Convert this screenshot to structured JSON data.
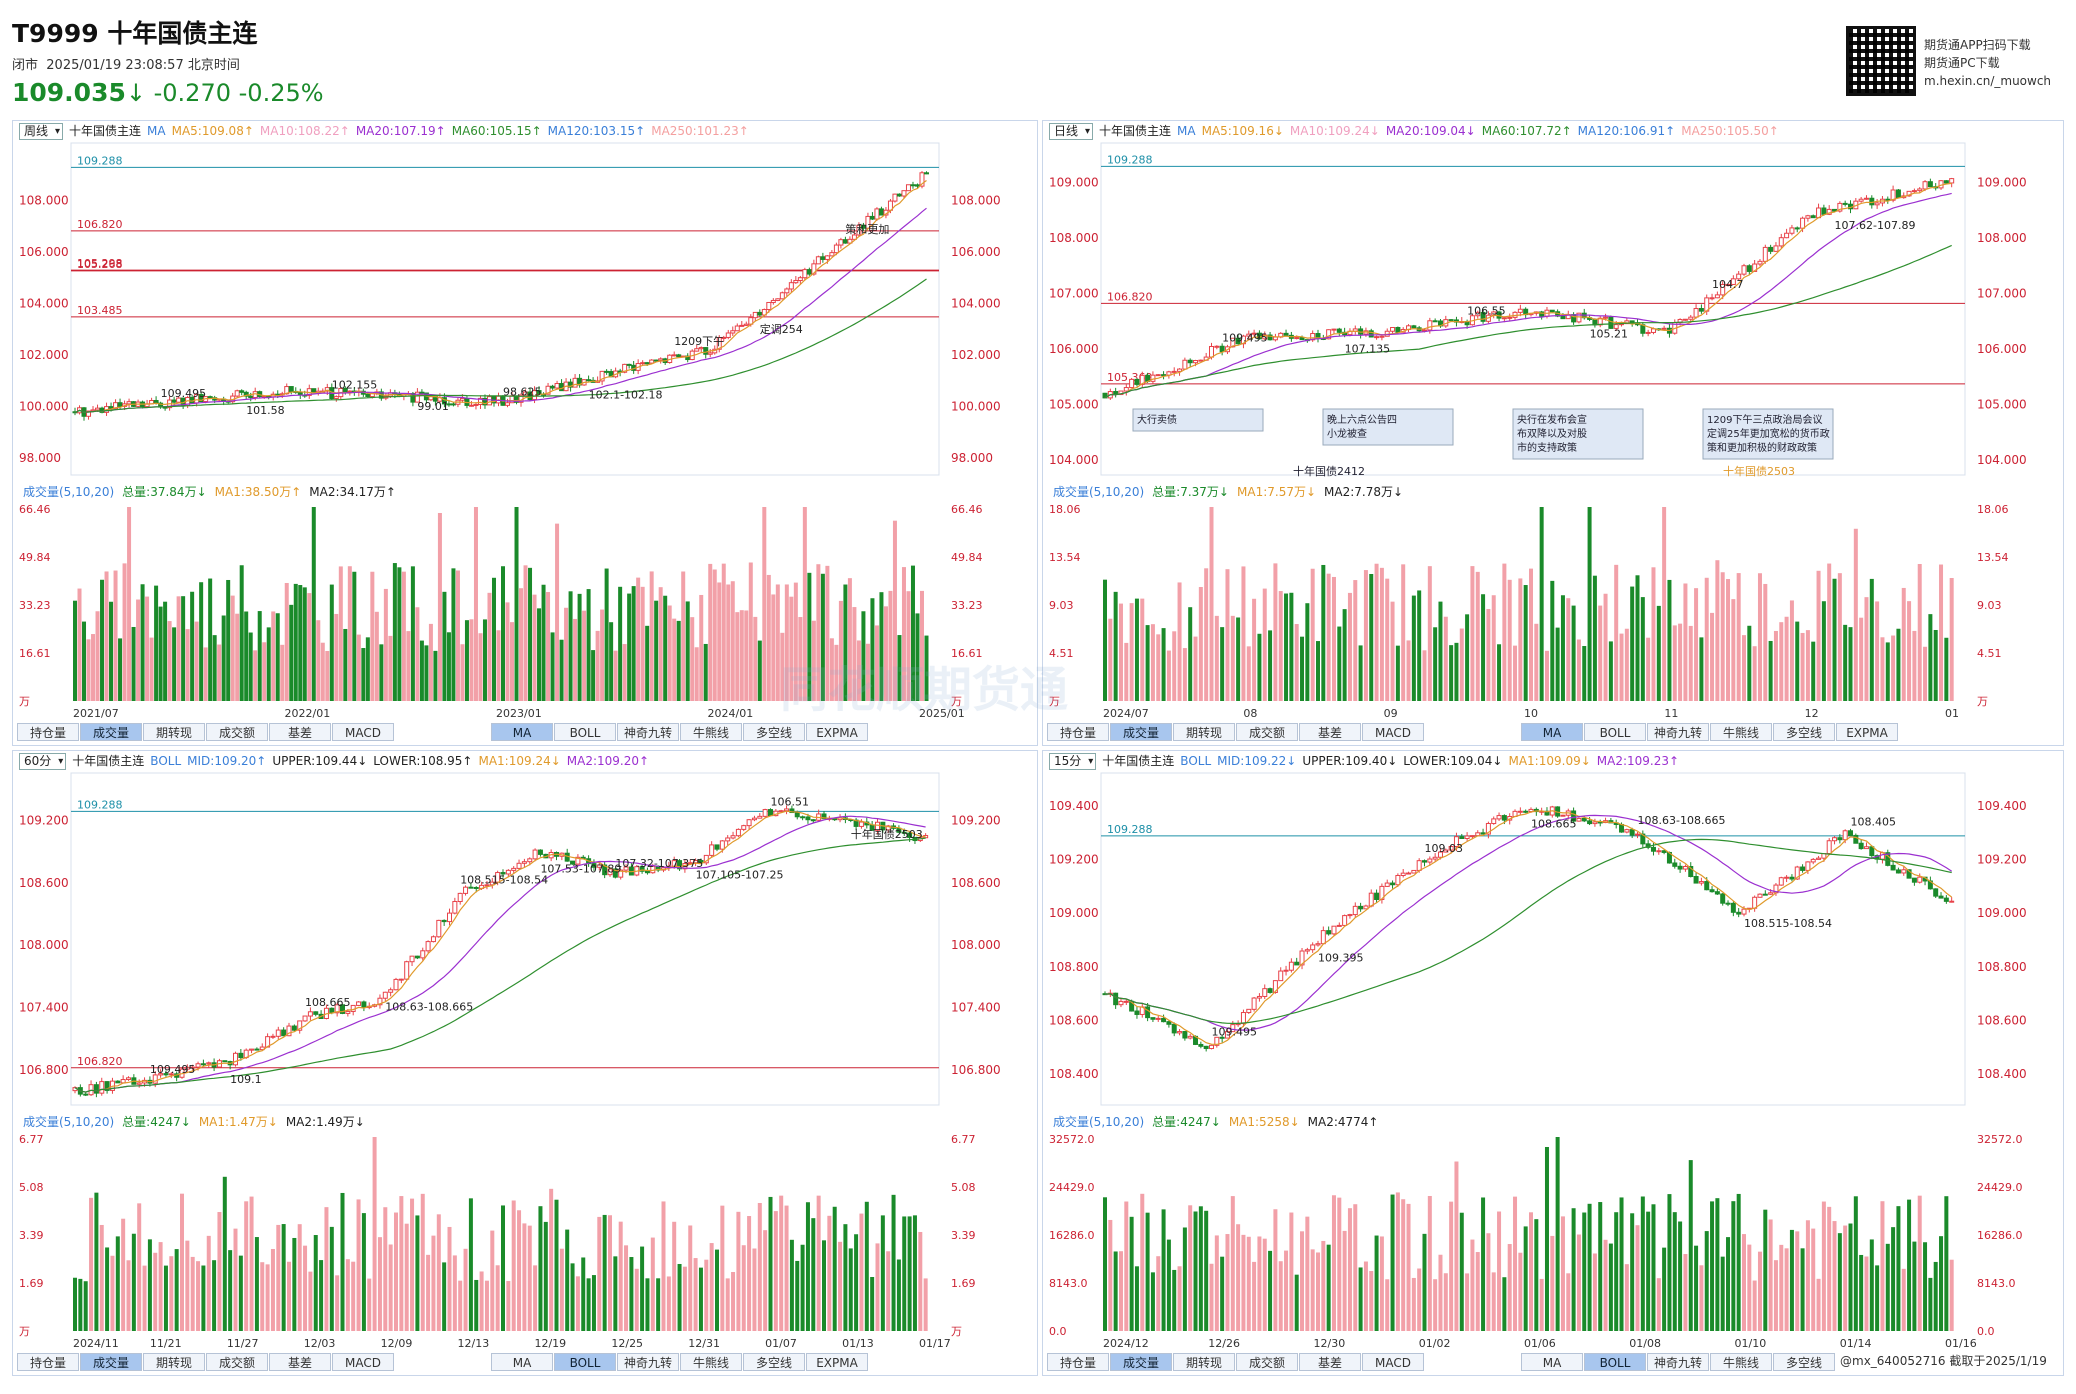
{
  "header": {
    "title": "T9999 十年国债主连",
    "status": "闭市",
    "datetime": "2025/01/19 23:08:57 北京时间",
    "price": "109.035",
    "arrow": "↓",
    "change": "-0.270",
    "change_pct": "-0.25%",
    "qr_lines": [
      "期货通APP扫码下载",
      "期货通PC下载",
      "m.hexin.cn/_muowch"
    ]
  },
  "colors": {
    "up": "#e8434a",
    "down": "#1a8a2a",
    "ma5": "#e09a2b",
    "ma10": "#f0a0c0",
    "ma20": "#9b30d0",
    "ma60": "#2f8f2f",
    "ma120": "#3a7fd8",
    "ma250": "#f4a0a0",
    "support": "#1e90a8",
    "resist": "#c23"
  },
  "panels": {
    "weekly": {
      "period": "周线",
      "name": "十年国债主连",
      "ma_labels": [
        "MA",
        "MA5:109.08↑",
        "MA10:108.22↑",
        "MA20:107.19↑",
        "MA60:105.15↑",
        "MA120:103.15↑",
        "MA250:101.23↑"
      ],
      "yticks": [
        "108.000",
        "106.000",
        "104.000",
        "102.000",
        "100.000",
        "98.000"
      ],
      "level_labels": [
        "109.288",
        "106.820",
        "105.268",
        "105.298",
        "103.485"
      ],
      "annotations": [
        "109.495",
        "101.58",
        "102.155",
        "99.01",
        "98.625",
        "102.1-102.18",
        "1209下午",
        "定调254",
        "策和更加"
      ],
      "vol_header": [
        "成交量(5,10,20)",
        "总量:37.84万↓",
        "MA1:38.50万↑",
        "MA2:34.17万↑"
      ],
      "vol_ticks": [
        "66.46",
        "49.84",
        "33.23",
        "16.61",
        "万"
      ],
      "xticks": [
        "2021/07",
        "2022/01",
        "2023/01",
        "2024/01",
        "2025/01"
      ],
      "tabs_left": [
        "持仓量",
        "成交量",
        "期转现",
        "成交额",
        "基差",
        "MACD"
      ],
      "tabs_right": [
        "MA",
        "BOLL",
        "神奇九转",
        "牛熊线",
        "多空线",
        "EXPMA"
      ],
      "active_left": "成交量",
      "active_right": "MA"
    },
    "daily": {
      "period": "日线",
      "name": "十年国债主连",
      "ma_labels": [
        "MA",
        "MA5:109.16↓",
        "MA10:109.24↓",
        "MA20:109.04↓",
        "MA60:107.72↑",
        "MA120:106.91↑",
        "MA250:105.50↑"
      ],
      "yticks": [
        "109.000",
        "108.000",
        "107.000",
        "106.000",
        "105.000",
        "104.000"
      ],
      "level_labels": [
        "109.288",
        "106.820",
        "105.369"
      ],
      "annotations": [
        "109.495",
        "107.135",
        "106.55",
        "105.21",
        "104.7",
        "107.62-107.89"
      ],
      "callouts": [
        "大行卖债",
        "晚上六点公告四\n小龙被查",
        "央行在发布会宣\n布双降以及对股\n市的支持政策",
        "1209下午三点政治局会议\n定调25年更加宽松的货币政\n策和更加积极的财政政策"
      ],
      "contracts": [
        "十年国债2412",
        "十年国债2503"
      ],
      "vol_header": [
        "成交量(5,10,20)",
        "总量:7.37万↓",
        "MA1:7.57万↓",
        "MA2:7.78万↓"
      ],
      "vol_ticks": [
        "18.06",
        "13.54",
        "9.03",
        "4.51",
        "万"
      ],
      "xticks": [
        "2024/07",
        "08",
        "09",
        "10",
        "11",
        "12",
        "01"
      ],
      "tabs_left": [
        "持仓量",
        "成交量",
        "期转现",
        "成交额",
        "基差",
        "MACD"
      ],
      "tabs_right": [
        "MA",
        "BOLL",
        "神奇九转",
        "牛熊线",
        "多空线",
        "EXPMA"
      ],
      "active_left": "成交量",
      "active_right": "MA"
    },
    "min60": {
      "period": "60分",
      "name": "十年国债主连",
      "ma_labels": [
        "BOLL",
        "MID:109.20↑",
        "UPPER:109.44↓",
        "LOWER:108.95↑",
        "MA1:109.24↓",
        "MA2:109.20↑"
      ],
      "yticks": [
        "109.200",
        "108.600",
        "108.000",
        "107.400",
        "106.800"
      ],
      "level_labels": [
        "109.288",
        "106.820"
      ],
      "annotations": [
        "109.495",
        "109.1",
        "108.665",
        "108.63-108.665",
        "108.515-108.54",
        "107.53-107.89",
        "107.32-107.375",
        "107.105-107.25",
        "106.51",
        "十年国债2503"
      ],
      "vol_header": [
        "成交量(5,10,20)",
        "总量:4247↓",
        "MA1:1.47万↓",
        "MA2:1.49万↓"
      ],
      "vol_ticks": [
        "6.77",
        "5.08",
        "3.39",
        "1.69",
        "万"
      ],
      "xticks": [
        "2024/11",
        "11/21",
        "11/27",
        "12/03",
        "12/09",
        "12/13",
        "12/19",
        "12/25",
        "12/31",
        "01/07",
        "01/13",
        "01/17"
      ],
      "tabs_left": [
        "持仓量",
        "成交量",
        "期转现",
        "成交额",
        "基差",
        "MACD"
      ],
      "tabs_right": [
        "MA",
        "BOLL",
        "神奇九转",
        "牛熊线",
        "多空线",
        "EXPMA"
      ],
      "active_left": "成交量",
      "active_right": "BOLL"
    },
    "min15": {
      "period": "15分",
      "name": "十年国债主连",
      "ma_labels": [
        "BOLL",
        "MID:109.22↓",
        "UPPER:109.40↓",
        "LOWER:109.04↓",
        "MA1:109.09↓",
        "MA2:109.23↑"
      ],
      "yticks": [
        "109.400",
        "109.200",
        "109.000",
        "108.800",
        "108.600",
        "108.400"
      ],
      "level_labels": [
        "109.288"
      ],
      "annotations": [
        "109.495",
        "109.395",
        "109.03",
        "108.665",
        "108.63-108.665",
        "108.515-108.54",
        "108.405"
      ],
      "vol_header": [
        "成交量(5,10,20)",
        "总量:4247↓",
        "MA1:5258↓",
        "MA2:4774↑"
      ],
      "vol_ticks": [
        "32572.0",
        "24429.0",
        "16286.0",
        "8143.0",
        "0.0"
      ],
      "xticks": [
        "2024/12",
        "12/26",
        "12/30",
        "01/02",
        "01/06",
        "01/08",
        "01/10",
        "01/14",
        "01/16"
      ],
      "tabs_left": [
        "持仓量",
        "成交量",
        "期转现",
        "成交额",
        "基差",
        "MACD"
      ],
      "tabs_right": [
        "MA",
        "BOLL",
        "神奇九转",
        "牛熊线",
        "多空线"
      ],
      "active_left": "成交量",
      "active_right": "BOLL"
    }
  },
  "watermark": "同花顺期货通",
  "footer": "@mx_640052716  截取于2025/1/19",
  "chart_data": [
    {
      "type": "candlestick",
      "title": "周线 十年国债主连",
      "x": [
        "2021/07",
        "2022/01",
        "2023/01",
        "2024/01",
        "2025/01"
      ],
      "close": [
        99.8,
        100.6,
        100.2,
        102.3,
        109.035
      ],
      "ylim": [
        97.5,
        110
      ],
      "levels": [
        109.288,
        106.82,
        105.268,
        105.298,
        103.485
      ]
    },
    {
      "type": "candlestick",
      "title": "日线 十年国债主连",
      "x": [
        "2024/07",
        "08",
        "09",
        "10",
        "11",
        "12",
        "01"
      ],
      "close": [
        105.2,
        106.2,
        106.3,
        106.7,
        106.3,
        108.4,
        109.035
      ],
      "ylim": [
        103.8,
        109.6
      ],
      "levels": [
        109.288,
        106.82,
        105.369
      ]
    },
    {
      "type": "candlestick",
      "title": "60分 十年国债主连",
      "x": [
        "2024/11",
        "11/21",
        "11/27",
        "12/03",
        "12/09",
        "12/13",
        "12/19",
        "12/25",
        "12/31",
        "01/07",
        "01/13",
        "01/17"
      ],
      "close": [
        106.6,
        106.7,
        106.9,
        107.3,
        107.5,
        108.5,
        108.9,
        108.7,
        108.8,
        109.3,
        109.2,
        109.035
      ],
      "ylim": [
        106.5,
        109.6
      ],
      "levels": [
        109.288,
        106.82
      ]
    },
    {
      "type": "candlestick",
      "title": "15分 十年国债主连",
      "x": [
        "2024/12",
        "12/26",
        "12/30",
        "01/02",
        "01/06",
        "01/08",
        "01/10",
        "01/14",
        "01/16"
      ],
      "close": [
        108.7,
        108.5,
        108.9,
        109.2,
        109.4,
        109.3,
        109.0,
        109.3,
        109.035
      ],
      "ylim": [
        108.3,
        109.5
      ],
      "levels": [
        109.288
      ]
    }
  ]
}
